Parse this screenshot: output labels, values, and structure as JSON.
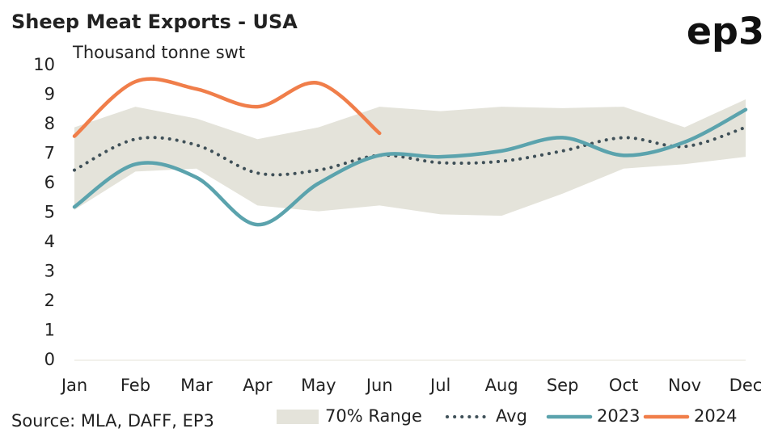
{
  "chart_data": {
    "type": "line",
    "title": "Sheep Meat Exports - USA",
    "logo": "ep3",
    "y_label": "Thousand tonne swt",
    "source": "Source: MLA, DAFF, EP3",
    "categories": [
      "Jan",
      "Feb",
      "Mar",
      "Apr",
      "May",
      "Jun",
      "Jul",
      "Aug",
      "Sep",
      "Oct",
      "Nov",
      "Dec"
    ],
    "ylim": [
      0,
      10
    ],
    "yticks": [
      0,
      1,
      2,
      3,
      4,
      5,
      6,
      7,
      8,
      9,
      10
    ],
    "grid": false,
    "legend": "bottom",
    "series": [
      {
        "name": "70% Range",
        "kind": "band",
        "color": "#e4e3da",
        "values": [
          7.9,
          8.6,
          8.2,
          7.5,
          7.9,
          8.6,
          8.45,
          8.6,
          8.55,
          8.6,
          7.9,
          8.85
        ],
        "lower": [
          5.1,
          6.4,
          6.5,
          5.25,
          5.05,
          5.25,
          4.95,
          4.9,
          5.65,
          6.5,
          6.65,
          6.9
        ]
      },
      {
        "name": "Avg",
        "kind": "dotted",
        "color": "#3f5058",
        "values": [
          6.45,
          7.5,
          7.3,
          6.35,
          6.45,
          6.95,
          6.7,
          6.75,
          7.1,
          7.55,
          7.25,
          7.9
        ]
      },
      {
        "name": "2023",
        "kind": "line",
        "color": "#5ba3ad",
        "values": [
          5.2,
          6.65,
          6.2,
          4.6,
          6.0,
          6.95,
          6.9,
          7.1,
          7.55,
          6.95,
          7.4,
          8.5
        ]
      },
      {
        "name": "2024",
        "kind": "line",
        "color": "#f07e4a",
        "values": [
          7.6,
          9.45,
          9.2,
          8.6,
          9.4,
          7.7,
          null,
          null,
          null,
          null,
          null,
          null
        ]
      }
    ]
  }
}
